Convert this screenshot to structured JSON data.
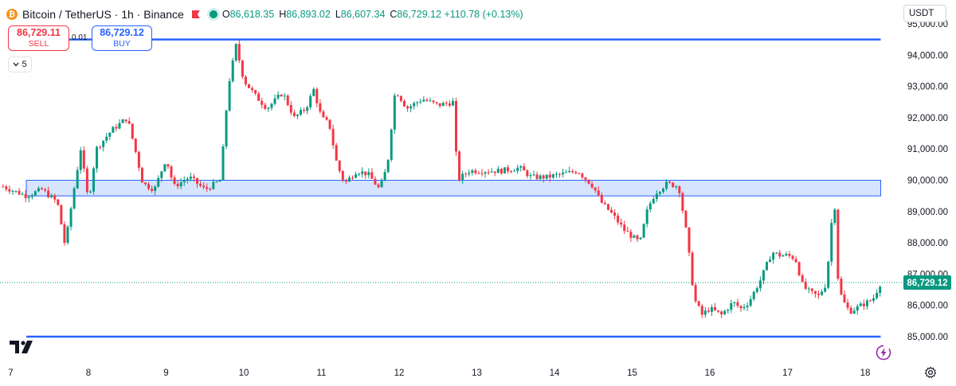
{
  "header": {
    "symbol_title": "Bitcoin / TetherUS · 1h · Binance",
    "ohlc": [
      {
        "key": "O",
        "value": "86,618.35"
      },
      {
        "key": "H",
        "value": "86,893.02"
      },
      {
        "key": "L",
        "value": "86,607.34"
      },
      {
        "key": "C",
        "value": "86,729.12 +110.78 (+0.13%)"
      }
    ]
  },
  "trade": {
    "sell_price": "86,729.11",
    "sell_label": "SELL",
    "buy_price": "86,729.12",
    "buy_label": "BUY",
    "spread": "0.01"
  },
  "indicator_toggle": "5",
  "currency": "USDT",
  "colors": {
    "up": "#089981",
    "down": "#f23645",
    "accent": "#2962ff",
    "zone_fill": "#cfe0fd"
  },
  "chart_data": {
    "type": "candlestick",
    "symbol": "BTC/USDT",
    "interval": "1h",
    "x_ticks": [
      "7",
      "8",
      "9",
      "10",
      "11",
      "12",
      "13",
      "14",
      "15",
      "16",
      "17",
      "18"
    ],
    "y_ticks": [
      "85,000.00",
      "86,000.00",
      "87,000.00",
      "88,000.00",
      "89,000.00",
      "90,000.00",
      "91,000.00",
      "92,000.00",
      "93,000.00",
      "94,000.00",
      "95,000.00"
    ],
    "ylim": [
      84200,
      95000
    ],
    "last_price": 86729.12,
    "last_price_label": "86,729.12",
    "horizontal_lines": [
      94500,
      85000
    ],
    "zone": {
      "from_day": 7.2,
      "to_day": 18.2,
      "low": 89500,
      "high": 90000
    },
    "close_path": [
      [
        6.9,
        89800
      ],
      [
        7.0,
        89700
      ],
      [
        7.2,
        89500
      ],
      [
        7.4,
        89700
      ],
      [
        7.6,
        89300
      ],
      [
        7.7,
        87900
      ],
      [
        7.8,
        89500
      ],
      [
        7.9,
        91000
      ],
      [
        8.0,
        89300
      ],
      [
        8.1,
        91000
      ],
      [
        8.3,
        91600
      ],
      [
        8.5,
        92000
      ],
      [
        8.6,
        91000
      ],
      [
        8.7,
        89900
      ],
      [
        8.85,
        89700
      ],
      [
        9.0,
        90700
      ],
      [
        9.1,
        89800
      ],
      [
        9.3,
        90100
      ],
      [
        9.5,
        89700
      ],
      [
        9.7,
        90000
      ],
      [
        9.8,
        93000
      ],
      [
        9.9,
        94300
      ],
      [
        10.0,
        93200
      ],
      [
        10.15,
        92700
      ],
      [
        10.3,
        92300
      ],
      [
        10.5,
        92800
      ],
      [
        10.65,
        92000
      ],
      [
        10.8,
        92300
      ],
      [
        10.9,
        92900
      ],
      [
        11.0,
        92000
      ],
      [
        11.1,
        91800
      ],
      [
        11.2,
        90500
      ],
      [
        11.3,
        89900
      ],
      [
        11.45,
        90300
      ],
      [
        11.6,
        90200
      ],
      [
        11.75,
        89700
      ],
      [
        11.85,
        90500
      ],
      [
        11.95,
        92900
      ],
      [
        12.1,
        92300
      ],
      [
        12.3,
        92600
      ],
      [
        12.5,
        92400
      ],
      [
        12.7,
        92500
      ],
      [
        12.75,
        90000
      ],
      [
        12.9,
        90300
      ],
      [
        13.1,
        90300
      ],
      [
        13.3,
        90300
      ],
      [
        13.55,
        90400
      ],
      [
        13.7,
        90100
      ],
      [
        13.9,
        90100
      ],
      [
        14.1,
        90200
      ],
      [
        14.3,
        90300
      ],
      [
        14.5,
        89800
      ],
      [
        14.6,
        89300
      ],
      [
        14.75,
        88900
      ],
      [
        14.9,
        88400
      ],
      [
        15.1,
        88000
      ],
      [
        15.2,
        89100
      ],
      [
        15.3,
        89600
      ],
      [
        15.45,
        89900
      ],
      [
        15.6,
        89800
      ],
      [
        15.7,
        88300
      ],
      [
        15.8,
        86200
      ],
      [
        15.9,
        85700
      ],
      [
        16.0,
        85900
      ],
      [
        16.15,
        85700
      ],
      [
        16.3,
        86100
      ],
      [
        16.4,
        85900
      ],
      [
        16.5,
        86100
      ],
      [
        16.65,
        86800
      ],
      [
        16.8,
        87700
      ],
      [
        16.9,
        87600
      ],
      [
        17.0,
        87600
      ],
      [
        17.1,
        87500
      ],
      [
        17.2,
        86600
      ],
      [
        17.3,
        86400
      ],
      [
        17.4,
        86300
      ],
      [
        17.5,
        86700
      ],
      [
        17.6,
        89600
      ],
      [
        17.65,
        86900
      ],
      [
        17.7,
        86200
      ],
      [
        17.8,
        85800
      ],
      [
        17.95,
        86000
      ],
      [
        18.1,
        86200
      ],
      [
        18.2,
        86729
      ]
    ]
  }
}
